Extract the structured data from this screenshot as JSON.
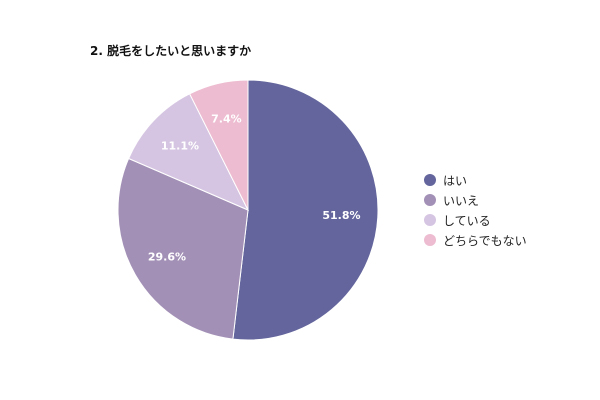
{
  "chart_data": {
    "type": "pie",
    "title": "2. 脱毛をしたいと思いますか",
    "categories": [
      "はい",
      "いいえ",
      "している",
      "どちらでもない"
    ],
    "values": [
      51.8,
      29.6,
      11.1,
      7.4
    ],
    "labels": [
      "51.8%",
      "29.6%",
      "11.1%",
      "7.4%"
    ],
    "colors": [
      "#63659c",
      "#a390b6",
      "#d6c5e2",
      "#edbcd0"
    ],
    "legend_position": "right"
  }
}
